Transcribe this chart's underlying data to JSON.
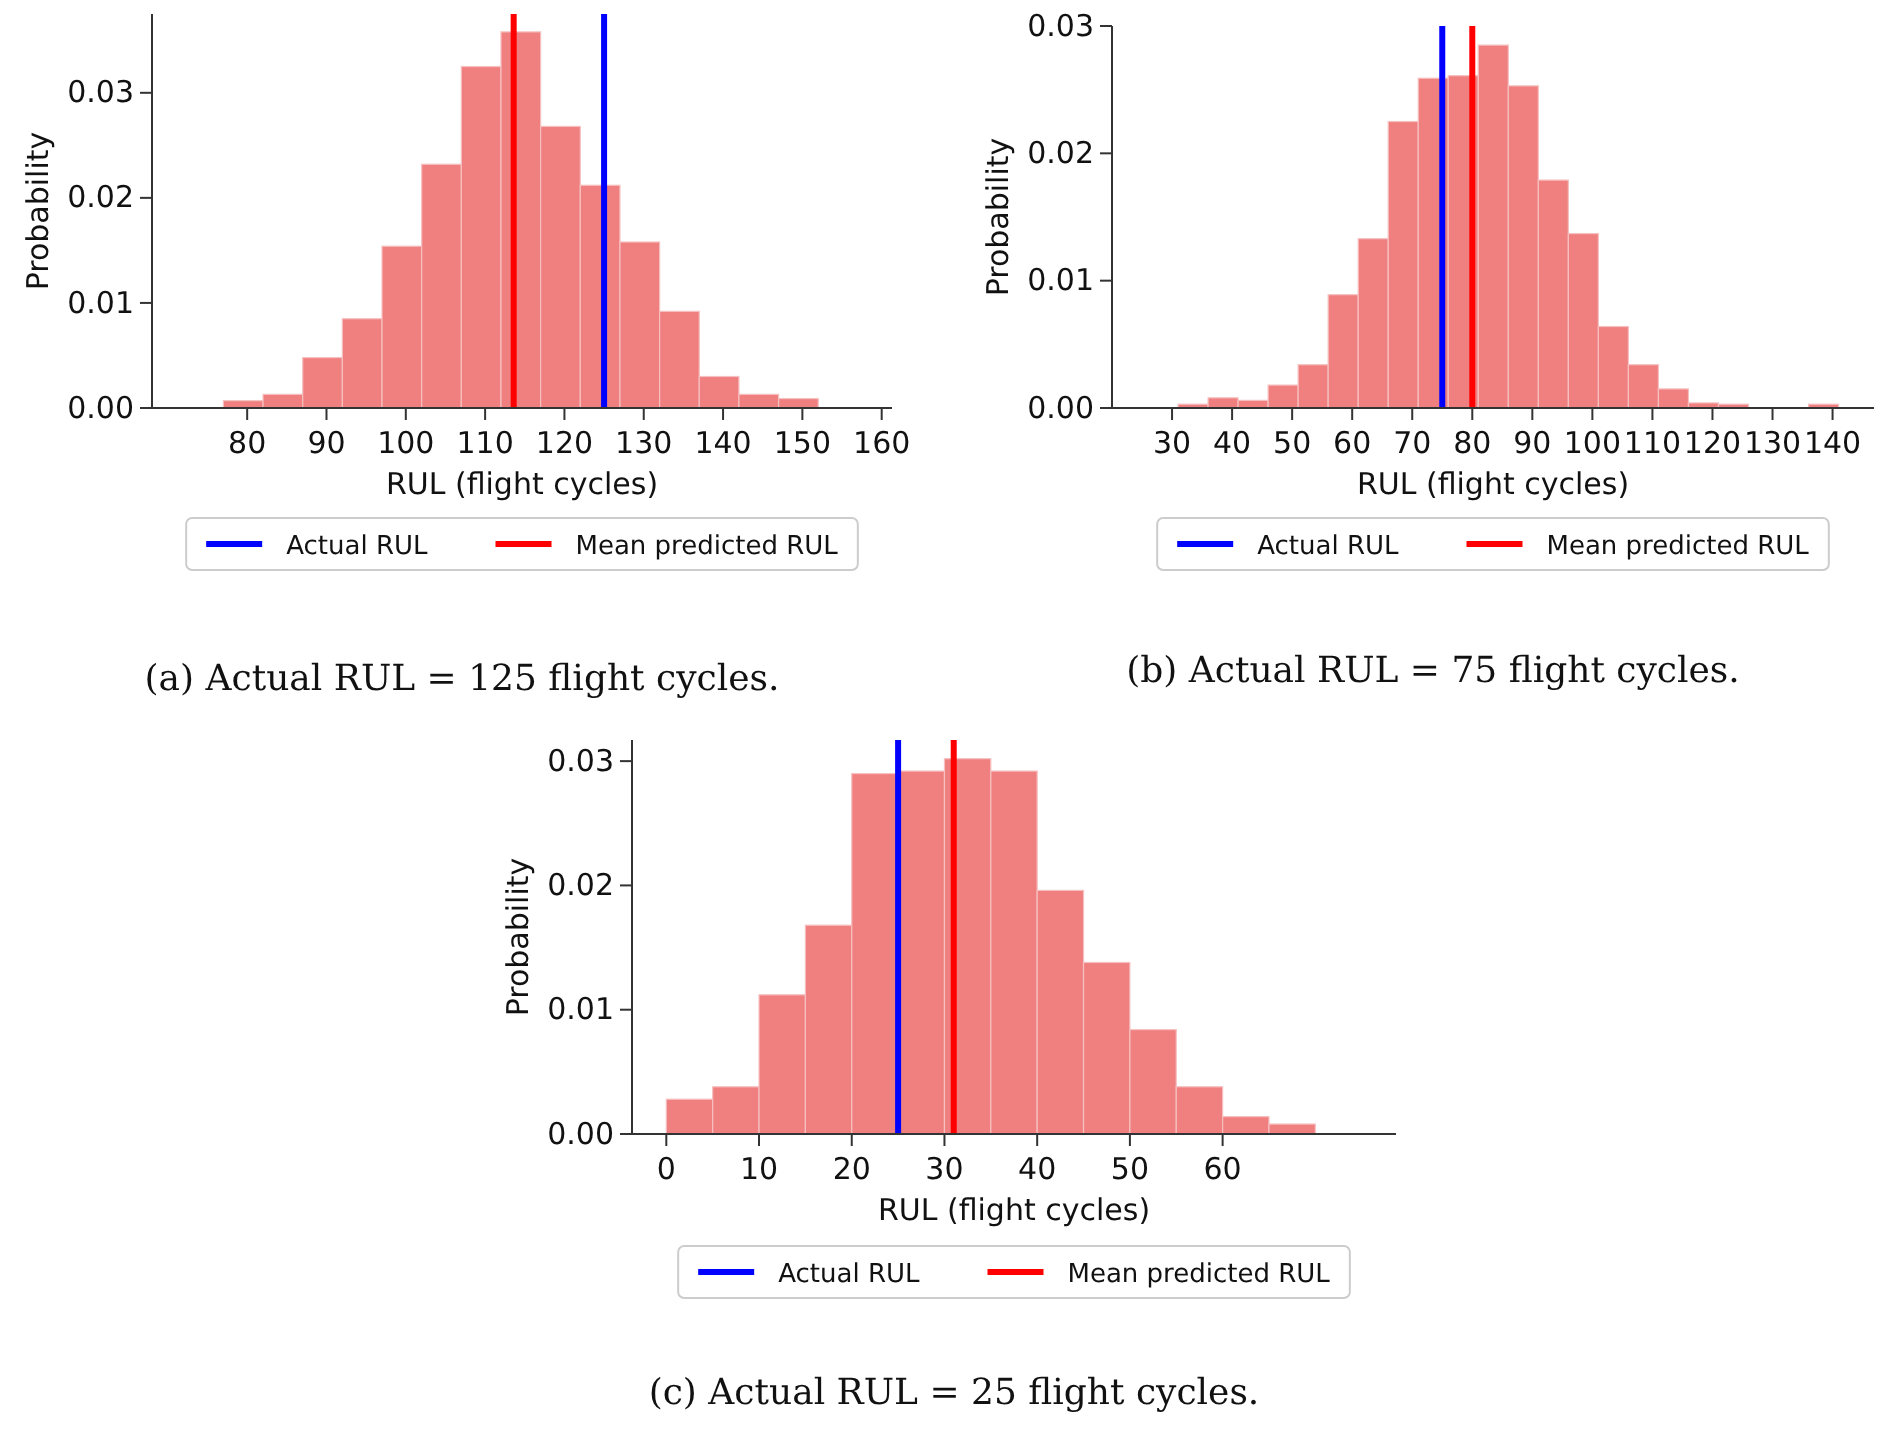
{
  "chart_data": [
    {
      "type": "histogram",
      "xlabel": "RUL (flight cycles)",
      "ylabel": "Probability",
      "color": "#f08080",
      "bins": [
        77,
        82,
        87,
        92,
        97,
        102,
        107,
        112,
        117,
        122,
        127,
        132,
        137,
        142,
        147,
        152
      ],
      "values": [
        0.0007,
        0.0013,
        0.0048,
        0.0085,
        0.0154,
        0.0232,
        0.0325,
        0.0358,
        0.0268,
        0.0212,
        0.0158,
        0.0092,
        0.003,
        0.0013,
        0.0009
      ],
      "xlim": [
        68,
        161.3
      ],
      "xticks": [
        80,
        90,
        100,
        110,
        120,
        130,
        140,
        150,
        160
      ],
      "ylim": [
        0,
        0.0375
      ],
      "yticks": [
        {
          "value": 0,
          "label": "0.00"
        },
        {
          "value": 0.01,
          "label": "0.01"
        },
        {
          "value": 0.02,
          "label": "0.02"
        },
        {
          "value": 0.03,
          "label": "0.03"
        }
      ],
      "ref_lines": [
        {
          "axis": "x",
          "value": 125,
          "label": "Actual RUL",
          "color": "#0000ff"
        },
        {
          "axis": "x",
          "value": 113.6,
          "label": "Mean predicted RUL",
          "color": "#ff0000"
        }
      ],
      "legend": "bottom",
      "grid": false,
      "annotations": [
        "(a) Actual RUL = 125 flight cycles."
      ]
    },
    {
      "type": "histogram",
      "xlabel": "RUL (flight cycles)",
      "ylabel": "Probability",
      "color": "#f08080",
      "bins": [
        31,
        36,
        41,
        46,
        51,
        56,
        61,
        66,
        71,
        76,
        81,
        86,
        91,
        96,
        101,
        106,
        111,
        116,
        121,
        126,
        131,
        136,
        141
      ],
      "values": [
        0.0003,
        0.0008,
        0.0006,
        0.0018,
        0.0034,
        0.0089,
        0.0133,
        0.0225,
        0.0259,
        0.0261,
        0.0285,
        0.0253,
        0.0179,
        0.0137,
        0.0064,
        0.0034,
        0.0015,
        0.0004,
        0.0003,
        0,
        0,
        0.0003
      ],
      "xlim": [
        20,
        146.9
      ],
      "xticks": [
        30,
        40,
        50,
        60,
        70,
        80,
        90,
        100,
        110,
        120,
        130,
        140
      ],
      "ylim": [
        0,
        0.03
      ],
      "yticks": [
        {
          "value": 0,
          "label": "0.00"
        },
        {
          "value": 0.01,
          "label": "0.01"
        },
        {
          "value": 0.02,
          "label": "0.02"
        },
        {
          "value": 0.03,
          "label": "0.03"
        }
      ],
      "ref_lines": [
        {
          "axis": "x",
          "value": 75,
          "label": "Actual RUL",
          "color": "#0000ff"
        },
        {
          "axis": "x",
          "value": 80,
          "label": "Mean predicted RUL",
          "color": "#ff0000"
        }
      ],
      "legend": "bottom",
      "grid": false,
      "annotations": [
        "(b) Actual RUL = 75 flight cycles."
      ]
    },
    {
      "type": "histogram",
      "xlabel": "RUL (flight cycles)",
      "ylabel": "Probability",
      "color": "#f08080",
      "bins": [
        0,
        5,
        10,
        15,
        20,
        25,
        30,
        35,
        40,
        45,
        50,
        55,
        60,
        65,
        70
      ],
      "values": [
        0.0028,
        0.0038,
        0.0112,
        0.0168,
        0.029,
        0.0292,
        0.0302,
        0.0292,
        0.0196,
        0.0138,
        0.0084,
        0.0038,
        0.0014,
        0.0008
      ],
      "xlim": [
        -3.7,
        78.7
      ],
      "xticks": [
        0,
        10,
        20,
        30,
        40,
        50,
        60
      ],
      "ylim": [
        0,
        0.0317
      ],
      "yticks": [
        {
          "value": 0,
          "label": "0.00"
        },
        {
          "value": 0.01,
          "label": "0.01"
        },
        {
          "value": 0.02,
          "label": "0.02"
        },
        {
          "value": 0.03,
          "label": "0.03"
        }
      ],
      "ref_lines": [
        {
          "axis": "x",
          "value": 25,
          "label": "Actual RUL",
          "color": "#0000ff"
        },
        {
          "axis": "x",
          "value": 31,
          "label": "Mean predicted RUL",
          "color": "#ff0000"
        }
      ],
      "legend": "bottom",
      "grid": false,
      "annotations": [
        "(c) Actual RUL = 25 flight cycles."
      ]
    }
  ]
}
